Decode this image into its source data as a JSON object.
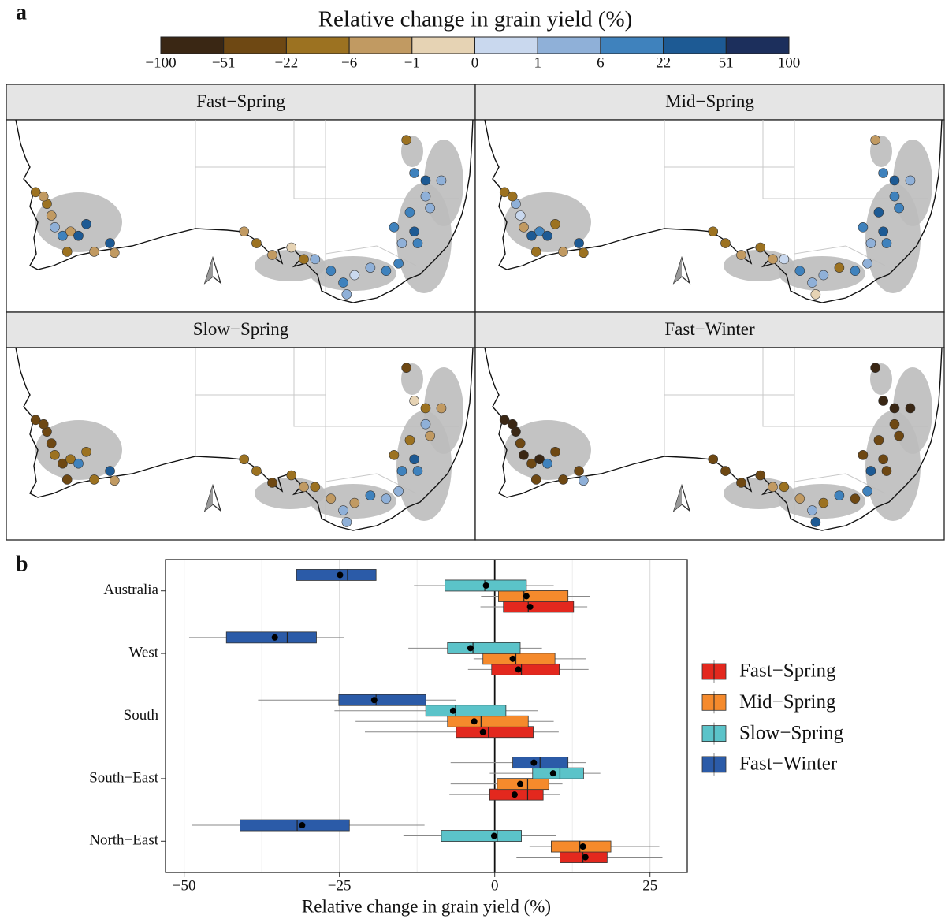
{
  "chart_data": [
    {
      "type": "map",
      "label": "a",
      "title": "Relative change in grain yield (%)",
      "colorbar": {
        "breaks": [
          {
            "value": -100,
            "label": "−100"
          },
          {
            "value": -51,
            "label": "−51"
          },
          {
            "value": -22,
            "label": "−22"
          },
          {
            "value": -6,
            "label": "−6"
          },
          {
            "value": -1,
            "label": "−1"
          },
          0,
          1,
          6,
          22,
          51,
          100
        ],
        "colors": [
          "#3a2714",
          "#6e4813",
          "#9c7221",
          "#c19a62",
          "#e6d3b4",
          "#c9d8ee",
          "#8fb0d8",
          "#3f82bd",
          "#1d5a94",
          "#1c2f5c"
        ]
      },
      "sites": [
        [
          115.1,
          -27.8
        ],
        [
          116.1,
          -28.9
        ],
        [
          116.5,
          -30.0
        ],
        [
          116.8,
          -31.1
        ],
        [
          117.5,
          -31.9
        ],
        [
          118.2,
          -31.5
        ],
        [
          118.9,
          -31.9
        ],
        [
          119.6,
          -30.8
        ],
        [
          117.9,
          -33.4
        ],
        [
          121.7,
          -32.6
        ],
        [
          122.1,
          -33.5
        ],
        [
          120.3,
          -33.4
        ],
        [
          115.8,
          -28.2
        ],
        [
          133.6,
          -31.5
        ],
        [
          134.7,
          -32.6
        ],
        [
          136.1,
          -33.7
        ],
        [
          137.8,
          -33.0
        ],
        [
          138.9,
          -34.1
        ],
        [
          139.9,
          -34.1
        ],
        [
          141.3,
          -35.2
        ],
        [
          142.4,
          -36.3
        ],
        [
          142.7,
          -37.4
        ],
        [
          143.4,
          -35.6
        ],
        [
          144.8,
          -34.9
        ],
        [
          146.2,
          -35.2
        ],
        [
          147.3,
          -34.5
        ],
        [
          148.0,
          -22.9
        ],
        [
          148.7,
          -26.0
        ],
        [
          149.7,
          -26.7
        ],
        [
          151.1,
          -26.7
        ],
        [
          148.3,
          -29.7
        ],
        [
          150.1,
          -29.3
        ],
        [
          146.9,
          -31.1
        ],
        [
          148.7,
          -31.5
        ],
        [
          147.6,
          -32.6
        ],
        [
          149.0,
          -32.6
        ],
        [
          149.7,
          -28.2
        ]
      ],
      "panels": [
        {
          "title": "Fast−Spring",
          "values": [
            -12,
            -12,
            -3,
            3,
            12,
            -3,
            30,
            30,
            -12,
            30,
            -3,
            -3,
            -3,
            -3,
            -12,
            -3,
            -0.5,
            -12,
            3,
            12,
            12,
            3,
            0.5,
            3,
            12,
            12,
            -12,
            12,
            30,
            3,
            12,
            3,
            12,
            30,
            3,
            12,
            3
          ]
        },
        {
          "title": "Mid−Spring",
          "values": [
            -12,
            3,
            0.5,
            -3,
            30,
            12,
            30,
            -12,
            -12,
            30,
            -12,
            -3,
            -12,
            -12,
            -12,
            -3,
            -12,
            -3,
            0.5,
            12,
            3,
            -0.5,
            3,
            -12,
            12,
            3,
            -3,
            12,
            30,
            3,
            30,
            12,
            12,
            30,
            3,
            12,
            12
          ]
        },
        {
          "title": "Slow−Spring",
          "values": [
            -30,
            -30,
            -30,
            -12,
            -30,
            -12,
            12,
            -12,
            -30,
            30,
            -3,
            -12,
            -30,
            -12,
            -12,
            -30,
            -12,
            -3,
            -12,
            -3,
            3,
            3,
            -3,
            12,
            3,
            3,
            -30,
            -0.5,
            -12,
            -3,
            -12,
            -3,
            -12,
            30,
            12,
            12,
            3
          ]
        },
        {
          "title": "Fast−Winter",
          "values": [
            -60,
            -60,
            -30,
            -60,
            -30,
            -60,
            12,
            -30,
            -30,
            -30,
            3,
            -30,
            -60,
            -30,
            -30,
            -30,
            -30,
            -3,
            -12,
            -3,
            3,
            30,
            -12,
            12,
            -30,
            12,
            -60,
            -60,
            -60,
            -60,
            -30,
            -30,
            -30,
            -30,
            30,
            -30,
            -30
          ]
        }
      ]
    },
    {
      "type": "boxplot",
      "label": "b",
      "orientation": "horizontal",
      "xlabel": "Relative change in grain yield (%)",
      "categories": [
        "Australia",
        "West",
        "South",
        "South−East",
        "North−East"
      ],
      "xlim": [
        -53,
        31
      ],
      "xticks": [
        {
          "value": -50,
          "label": "−50"
        },
        {
          "value": -25,
          "label": "−25"
        },
        0,
        25
      ],
      "minor_xticks": [
        -37.5,
        -12.5,
        12.5
      ],
      "grid": true,
      "reference_line": 0,
      "legend": "right",
      "series": [
        {
          "name": "Fast−Spring",
          "color": "#e3281e",
          "whisker_low": [
            -2.3,
            -4.3,
            -20.9,
            -7.3,
            3.5
          ],
          "q1": [
            1.4,
            -0.5,
            -6.2,
            -0.8,
            10.5
          ],
          "median": [
            5.4,
            4.3,
            -1.0,
            5.3,
            14.2
          ],
          "q3": [
            12.7,
            10.4,
            6.2,
            7.8,
            18.1
          ],
          "whisker_high": [
            14.9,
            15.1,
            10.3,
            10.5,
            27.0
          ],
          "mean": [
            5.7,
            3.8,
            -1.9,
            3.2,
            14.6
          ]
        },
        {
          "name": "Mid−Spring",
          "color": "#f58a2c",
          "whisker_low": [
            -2.2,
            -3.4,
            -22.4,
            -7.1,
            5.6
          ],
          "q1": [
            0.6,
            -1.9,
            -7.6,
            0.4,
            9.1
          ],
          "median": [
            4.7,
            3.4,
            -2.2,
            5.3,
            13.7
          ],
          "q3": [
            11.8,
            9.7,
            5.4,
            8.7,
            18.7
          ],
          "whisker_high": [
            15.3,
            14.7,
            9.5,
            10.9,
            26.5
          ],
          "mean": [
            5.1,
            2.9,
            -3.3,
            4.1,
            14.2
          ]
        },
        {
          "name": "Slow−Spring",
          "color": "#5bc3c9",
          "whisker_low": [
            -13.0,
            -13.9,
            -25.8,
            -0.8,
            -14.7
          ],
          "q1": [
            -8.0,
            -7.6,
            -11.1,
            6.1,
            -8.6
          ],
          "median": [
            -1.6,
            -3.5,
            -6.3,
            10.5,
            0.4
          ],
          "q3": [
            5.1,
            4.1,
            1.8,
            14.3,
            4.3
          ],
          "whisker_high": [
            9.5,
            7.6,
            7.0,
            17.0,
            9.9
          ],
          "mean": [
            -1.4,
            -3.9,
            -6.7,
            9.4,
            -0.1
          ]
        },
        {
          "name": "Fast−Winter",
          "color": "#2b5ba8",
          "whisker_low": [
            -39.7,
            -49.2,
            -38.1,
            -7.1,
            -48.7
          ],
          "q1": [
            -31.9,
            -43.2,
            -25.1,
            2.9,
            -41.0
          ],
          "median": [
            -23.7,
            -33.4,
            -19.1,
            7.3,
            -31.8
          ],
          "q3": [
            -19.1,
            -28.7,
            -11.1,
            11.8,
            -23.4
          ],
          "whisker_high": [
            -13.0,
            -24.2,
            -6.3,
            14.7,
            -11.3
          ],
          "mean": [
            -24.9,
            -35.4,
            -19.4,
            6.3,
            -31.0
          ]
        }
      ]
    }
  ]
}
